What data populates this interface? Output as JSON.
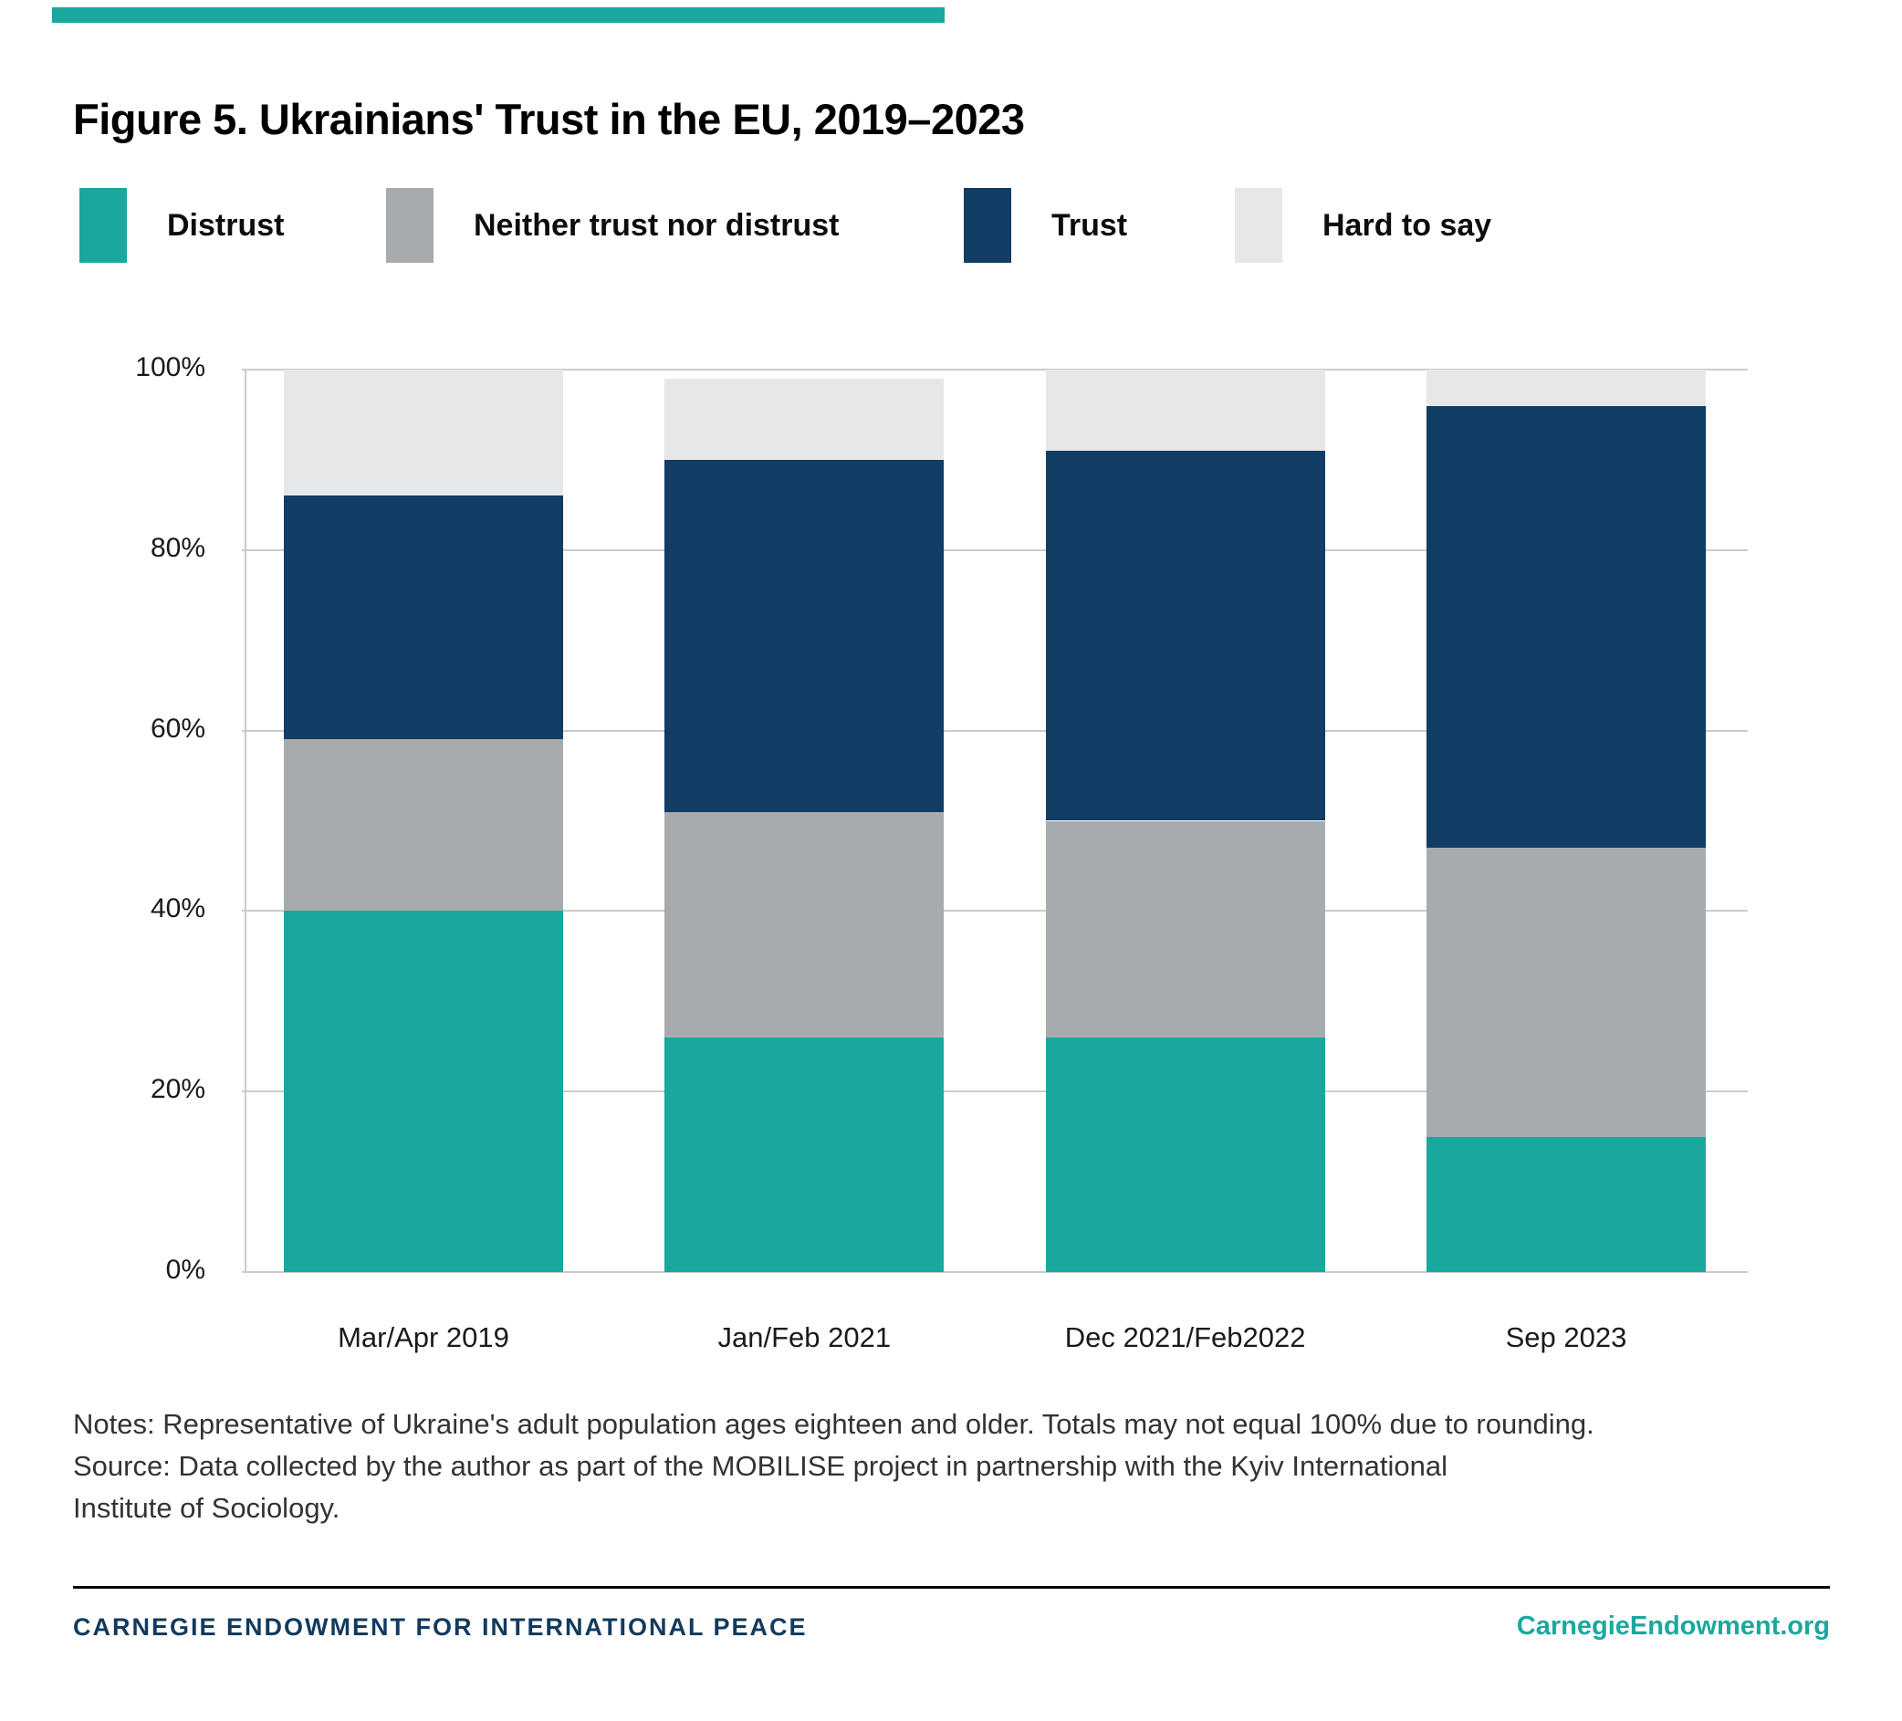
{
  "page": {
    "accent_bar_color": "#1AA89E"
  },
  "title": "Figure 5. Ukrainians' Trust in the EU, 2019–2023",
  "legend": [
    {
      "label": "Distrust",
      "color": "#1AA89E"
    },
    {
      "label": "Neither trust nor distrust",
      "color": "#A7ABAE"
    },
    {
      "label": "Trust",
      "color": "#123D64"
    },
    {
      "label": "Hard to say",
      "color": "#E5E7E9"
    }
  ],
  "chart_data": {
    "type": "bar",
    "stacked": true,
    "title": "Figure 5. Ukrainians' Trust in the EU, 2019–2023",
    "categories": [
      "Mar/Apr 2019",
      "Jan/Feb 2021",
      "Dec 2021/Feb2022",
      "Sep 2023"
    ],
    "series": [
      {
        "name": "Distrust",
        "color": "#1AA89E",
        "values": [
          40,
          26,
          26,
          15
        ]
      },
      {
        "name": "Neither trust nor distrust",
        "color": "#A7ABAE",
        "values": [
          19,
          25,
          24,
          32
        ]
      },
      {
        "name": "Trust",
        "color": "#123D64",
        "values": [
          27,
          39,
          41,
          49
        ]
      },
      {
        "name": "Hard to say",
        "color": "#E5E7E9",
        "values": [
          14,
          9,
          9,
          4
        ]
      }
    ],
    "xlabel": "",
    "ylabel": "",
    "ylim": [
      0,
      100
    ],
    "yticks": [
      0,
      20,
      40,
      60,
      80,
      100
    ],
    "ytick_labels": [
      "0%",
      "20%",
      "40%",
      "60%",
      "80%",
      "100%"
    ],
    "grid": true,
    "legend_position": "top"
  },
  "notes": {
    "line1": "Notes: Representative of Ukraine's adult population ages eighteen and older. Totals may not equal 100% due to rounding.",
    "line2": "Source: Data collected by the author as part of the MOBILISE project in partnership with the Kyiv International",
    "line3": "Institute of Sociology."
  },
  "footer": {
    "left": "CARNEGIE ENDOWMENT FOR INTERNATIONAL PEACE",
    "left_color": "#123A5E",
    "right": "CarnegieEndowment.org",
    "right_color": "#1AA89E"
  }
}
